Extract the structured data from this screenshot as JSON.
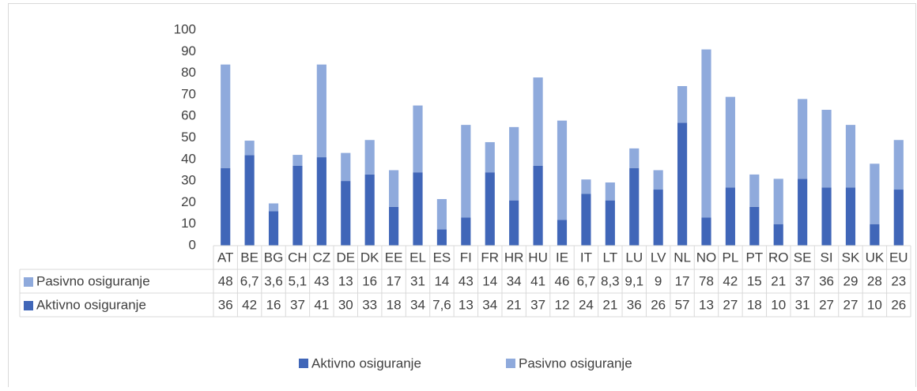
{
  "chart_data": {
    "type": "bar",
    "stacked": true,
    "categories": [
      "AT",
      "BE",
      "BG",
      "CH",
      "CZ",
      "DE",
      "DK",
      "EE",
      "EL",
      "ES",
      "FI",
      "FR",
      "HR",
      "HU",
      "IE",
      "IT",
      "LT",
      "LU",
      "LV",
      "NL",
      "NO",
      "PL",
      "PT",
      "RO",
      "SE",
      "SI",
      "SK",
      "UK",
      "EU"
    ],
    "series": [
      {
        "name": "Aktivno osiguranje",
        "color": "#4066b8",
        "values": [
          36,
          42,
          16,
          37,
          41,
          30,
          33,
          18,
          34,
          7.6,
          13,
          34,
          21,
          37,
          12,
          24,
          21,
          36,
          26,
          57,
          13,
          27,
          18,
          10,
          31,
          27,
          27,
          10,
          26
        ],
        "value_labels": [
          "36",
          "42",
          "16",
          "37",
          "41",
          "30",
          "33",
          "18",
          "34",
          "7,6",
          "13",
          "34",
          "21",
          "37",
          "12",
          "24",
          "21",
          "36",
          "26",
          "57",
          "13",
          "27",
          "18",
          "10",
          "31",
          "27",
          "27",
          "10",
          "26"
        ]
      },
      {
        "name": "Pasivno osiguranje",
        "color": "#8faadc",
        "values": [
          48,
          6.7,
          3.6,
          5.1,
          43,
          13,
          16,
          17,
          31,
          14,
          43,
          14,
          34,
          41,
          46,
          6.7,
          8.3,
          9.1,
          9,
          17,
          78,
          42,
          15,
          21,
          37,
          36,
          29,
          28,
          23
        ],
        "value_labels": [
          "48",
          "6,7",
          "3,6",
          "5,1",
          "43",
          "13",
          "16",
          "17",
          "31",
          "14",
          "43",
          "14",
          "34",
          "41",
          "46",
          "6,7",
          "8,3",
          "9,1",
          "9",
          "17",
          "78",
          "42",
          "15",
          "21",
          "37",
          "36",
          "29",
          "28",
          "23"
        ]
      }
    ],
    "ylim": [
      0,
      100
    ],
    "yticks": [
      0,
      10,
      20,
      30,
      40,
      50,
      60,
      70,
      80,
      90,
      100
    ],
    "grid": false,
    "legend": "bottom"
  }
}
